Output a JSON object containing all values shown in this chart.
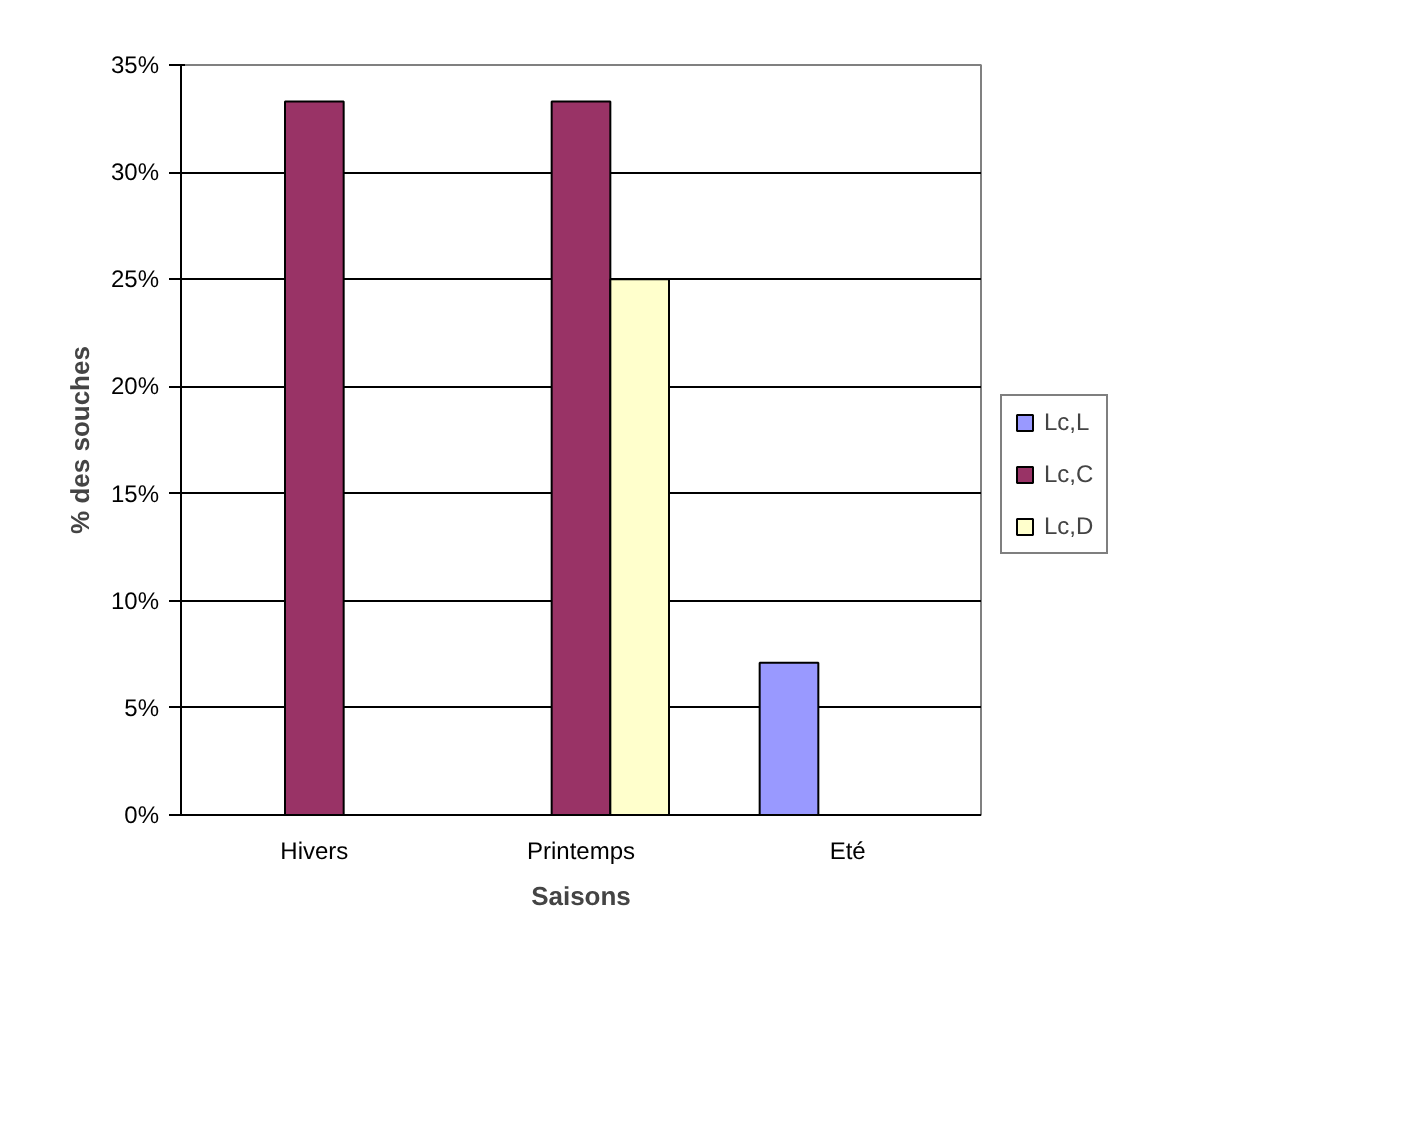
{
  "chart_data": {
    "type": "bar",
    "xlabel": "Saisons",
    "ylabel": "% des souches",
    "categories": [
      "Hivers",
      "Printemps",
      "Eté"
    ],
    "series": [
      {
        "name": "Lc,L",
        "color": "#9999ff",
        "values": [
          null,
          null,
          7.1
        ]
      },
      {
        "name": "Lc,C",
        "color": "#993366",
        "values": [
          33.3,
          33.3,
          null
        ]
      },
      {
        "name": "Lc,D",
        "color": "#ffffcc",
        "values": [
          null,
          25,
          null
        ]
      }
    ],
    "ylim": [
      0,
      35
    ],
    "yticks": [
      {
        "value": 0,
        "label": "0%"
      },
      {
        "value": 5,
        "label": "5%"
      },
      {
        "value": 10,
        "label": "10%"
      },
      {
        "value": 15,
        "label": "15%"
      },
      {
        "value": 20,
        "label": "20%"
      },
      {
        "value": 25,
        "label": "25%"
      },
      {
        "value": 30,
        "label": "30%"
      },
      {
        "value": 35,
        "label": "35%"
      }
    ],
    "grid": "y",
    "legend": "right"
  }
}
